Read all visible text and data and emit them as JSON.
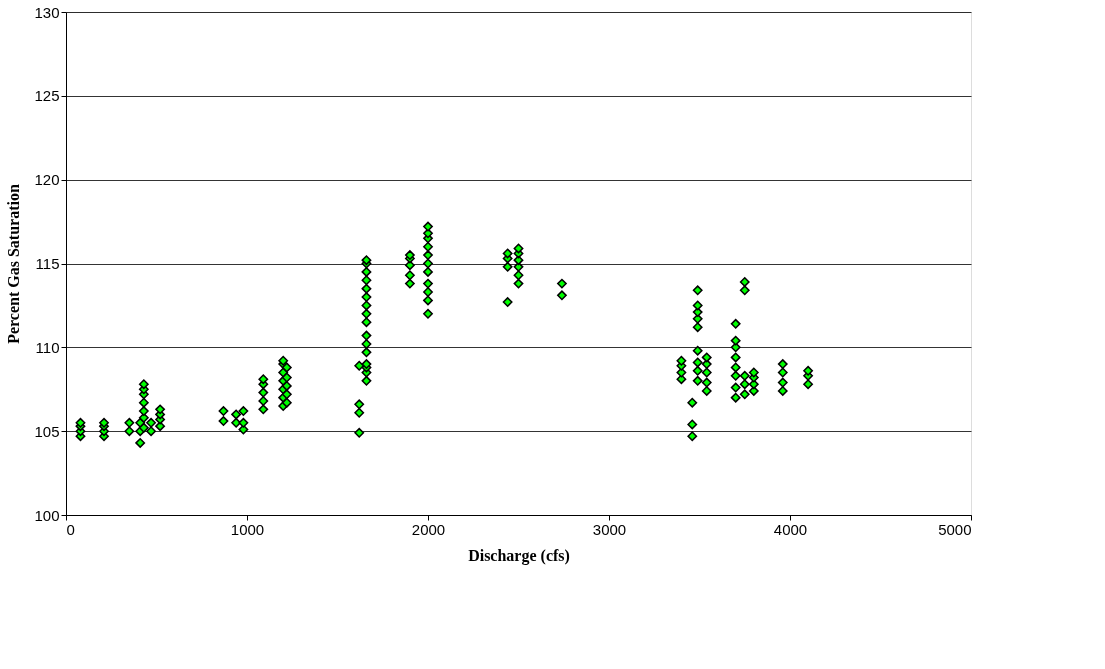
{
  "chart_data": {
    "type": "scatter",
    "xlabel": "Discharge (cfs)",
    "ylabel": "Percent Gas Saturation",
    "xlim": [
      0,
      5000
    ],
    "xticks": [
      0,
      1000,
      2000,
      3000,
      4000,
      5000
    ],
    "ylim": [
      100,
      130
    ],
    "yticks": [
      100,
      105,
      110,
      115,
      120,
      125,
      130
    ],
    "grid": "y",
    "marker": "diamond",
    "series": [
      {
        "color": "#00ff00",
        "x": [
          80,
          80,
          80,
          80,
          210,
          210,
          210,
          210,
          350,
          350,
          410,
          410,
          410,
          430,
          430,
          430,
          430,
          430,
          430,
          430,
          470,
          470,
          520,
          520,
          520,
          520,
          870,
          870,
          940,
          940,
          980,
          980,
          980,
          1090,
          1090,
          1090,
          1090,
          1090,
          1200,
          1200,
          1200,
          1200,
          1200,
          1200,
          1200,
          1220,
          1220,
          1220,
          1220,
          1220,
          1620,
          1620,
          1620,
          1620,
          1660,
          1660,
          1660,
          1660,
          1660,
          1660,
          1660,
          1660,
          1660,
          1660,
          1660,
          1660,
          1660,
          1660,
          1660,
          1660,
          1900,
          1900,
          1900,
          1900,
          1900,
          2000,
          2000,
          2000,
          2000,
          2000,
          2000,
          2000,
          2000,
          2000,
          2000,
          2000,
          2440,
          2440,
          2440,
          2440,
          2500,
          2500,
          2500,
          2500,
          2500,
          2500,
          2740,
          2740,
          3400,
          3400,
          3400,
          3400,
          3460,
          3460,
          3460,
          3490,
          3490,
          3490,
          3490,
          3490,
          3490,
          3490,
          3490,
          3490,
          3540,
          3540,
          3540,
          3540,
          3540,
          3700,
          3700,
          3700,
          3700,
          3700,
          3700,
          3700,
          3700,
          3750,
          3750,
          3750,
          3750,
          3750,
          3800,
          3800,
          3800,
          3800,
          3960,
          3960,
          3960,
          3960,
          4100,
          4100,
          4100
        ],
        "values": [
          104.7,
          105.0,
          105.3,
          105.5,
          104.7,
          105.0,
          105.3,
          105.5,
          105.0,
          105.5,
          104.3,
          105.0,
          105.5,
          105.2,
          105.8,
          106.2,
          106.7,
          107.2,
          107.5,
          107.8,
          105.0,
          105.5,
          105.3,
          105.7,
          106.0,
          106.3,
          105.6,
          106.2,
          105.5,
          106.0,
          105.1,
          105.5,
          106.2,
          106.3,
          106.8,
          107.3,
          107.8,
          108.1,
          106.5,
          107.0,
          107.5,
          108.0,
          108.5,
          109.0,
          109.2,
          106.7,
          107.2,
          107.7,
          108.2,
          108.8,
          104.9,
          106.1,
          106.6,
          108.9,
          108.0,
          108.5,
          108.8,
          109.0,
          109.7,
          110.2,
          110.7,
          111.5,
          112.0,
          112.5,
          113.0,
          113.5,
          114.0,
          114.5,
          115.0,
          115.2,
          113.8,
          114.3,
          114.9,
          115.3,
          115.5,
          112.0,
          112.8,
          113.3,
          113.8,
          114.5,
          115.0,
          115.5,
          116.0,
          116.5,
          116.8,
          117.2,
          112.7,
          114.8,
          115.3,
          115.6,
          113.8,
          114.3,
          114.8,
          115.2,
          115.6,
          115.9,
          113.1,
          113.8,
          108.1,
          108.5,
          108.9,
          109.2,
          104.7,
          105.4,
          106.7,
          108.0,
          108.6,
          109.1,
          109.8,
          111.2,
          111.7,
          112.1,
          112.5,
          113.4,
          107.4,
          107.9,
          108.5,
          109.0,
          109.4,
          107.0,
          107.6,
          108.3,
          108.8,
          109.4,
          110.0,
          110.4,
          111.4,
          107.2,
          107.8,
          108.3,
          113.4,
          113.9,
          107.4,
          107.8,
          108.2,
          108.5,
          107.4,
          107.9,
          108.5,
          109.0,
          107.8,
          108.3,
          108.6
        ]
      }
    ]
  }
}
